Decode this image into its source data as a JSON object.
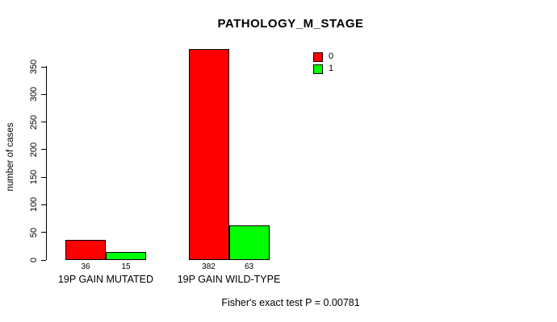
{
  "chart_data": {
    "type": "bar",
    "title": "PATHOLOGY_M_STAGE",
    "xlabel": "",
    "ylabel": "number of cases",
    "categories": [
      "19P GAIN MUTATED",
      "19P GAIN WILD-TYPE"
    ],
    "series": [
      {
        "name": "0",
        "color": "#ff0000",
        "values": [
          36,
          382
        ]
      },
      {
        "name": "1",
        "color": "#00ff00",
        "values": [
          15,
          63
        ]
      }
    ],
    "bar_value_labels": [
      [
        "36",
        "382"
      ],
      [
        "15",
        "63"
      ]
    ],
    "ylim": [
      0,
      350
    ],
    "yticks": [
      0,
      50,
      100,
      150,
      200,
      250,
      300,
      350
    ],
    "grid": false,
    "legend_position": "top-right",
    "bar_border_color": "#000000",
    "annotation": "Fisher's exact test P = 0.00781"
  },
  "legend": {
    "items": [
      {
        "label": "0",
        "color": "#ff0000"
      },
      {
        "label": "1",
        "color": "#00ff00"
      }
    ]
  },
  "footer": {
    "stat_text": "Fisher's exact test P = 0.00781"
  }
}
